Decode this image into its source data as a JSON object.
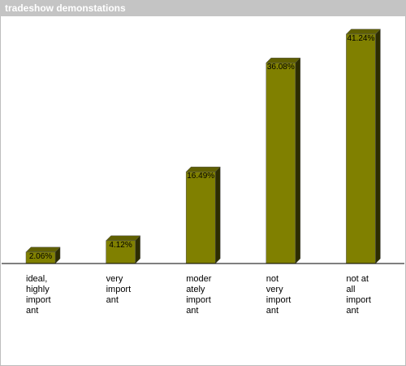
{
  "chart_data": {
    "type": "bar3d",
    "title": "tradeshow demonstations",
    "categories": [
      [
        "ideal,",
        "highly",
        "import",
        "ant"
      ],
      [
        "very",
        "import",
        "ant"
      ],
      [
        "moder",
        "ately",
        "import",
        "ant"
      ],
      [
        "not",
        "very",
        "import",
        "ant"
      ],
      [
        "not at",
        "all",
        "import",
        "ant"
      ]
    ],
    "values": [
      2.06,
      4.12,
      16.49,
      36.08,
      41.24
    ],
    "value_labels": [
      "2.06%",
      "4.12%",
      "16.49%",
      "36.08%",
      "41.24%"
    ],
    "color": "#808000"
  }
}
